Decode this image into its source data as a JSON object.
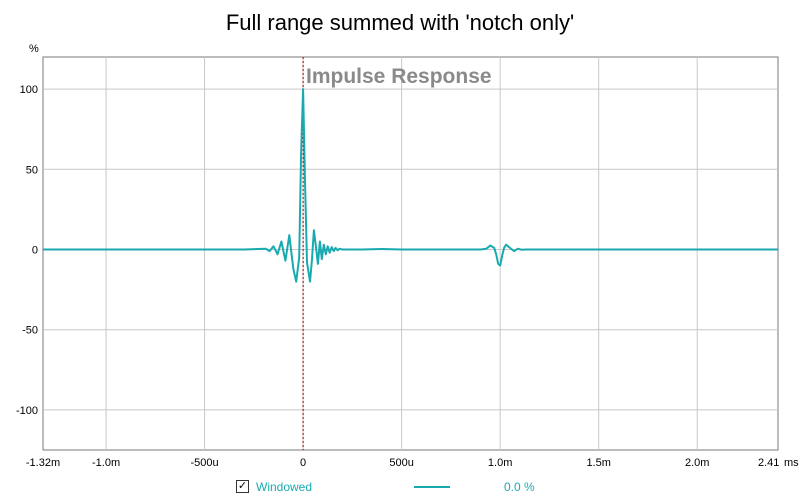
{
  "chart_data": {
    "type": "line",
    "title": "Full range summed with 'notch only'",
    "inner_label": "Impulse Response",
    "ylabel": "%",
    "xlabel": "",
    "xunit_label": "ms",
    "xlim": [
      -1.32,
      2.41
    ],
    "ylim": [
      -125,
      120
    ],
    "x_ticks": [
      {
        "v": -1.32,
        "label": "-1.32m"
      },
      {
        "v": -1.0,
        "label": "-1.0m"
      },
      {
        "v": -0.5,
        "label": "-500u"
      },
      {
        "v": 0,
        "label": "0"
      },
      {
        "v": 0.5,
        "label": "500u"
      },
      {
        "v": 1.0,
        "label": "1.0m"
      },
      {
        "v": 1.5,
        "label": "1.5m"
      },
      {
        "v": 2.0,
        "label": "2.0m"
      },
      {
        "v": 2.41,
        "label": "2.41"
      }
    ],
    "y_ticks": [
      {
        "v": 100,
        "label": "100"
      },
      {
        "v": 50,
        "label": "50"
      },
      {
        "v": 0,
        "label": "0"
      },
      {
        "v": -50,
        "label": "-50"
      },
      {
        "v": -100,
        "label": "-100"
      }
    ],
    "grid": true,
    "marker_x": 0,
    "series": [
      {
        "name": "Windowed",
        "color": "#19aab0",
        "x": [
          -1.32,
          -0.3,
          -0.19,
          -0.17,
          -0.15,
          -0.13,
          -0.11,
          -0.09,
          -0.07,
          -0.05,
          -0.035,
          -0.02,
          -0.01,
          0,
          0.01,
          0.02,
          0.035,
          0.045,
          0.055,
          0.065,
          0.075,
          0.085,
          0.095,
          0.105,
          0.115,
          0.125,
          0.135,
          0.145,
          0.155,
          0.165,
          0.175,
          0.185,
          0.2,
          0.3,
          0.4,
          0.5,
          0.6,
          0.7,
          0.8,
          0.9,
          0.93,
          0.95,
          0.97,
          0.98,
          0.99,
          1.0,
          1.01,
          1.02,
          1.03,
          1.05,
          1.07,
          1.09,
          1.11,
          1.13,
          1.3,
          1.5,
          1.7,
          1.9,
          2.1,
          2.41
        ],
        "values": [
          0,
          0,
          0.5,
          -1,
          2,
          -3,
          5,
          -7,
          9,
          -12,
          -20,
          -5,
          60,
          100,
          40,
          -8,
          -20,
          -6,
          12,
          2,
          -9,
          5,
          -6,
          3,
          -3,
          2,
          -2,
          1.5,
          -1,
          1,
          -0.5,
          0.4,
          0,
          0,
          0.3,
          0,
          0,
          0,
          0,
          0,
          0.5,
          2.5,
          1,
          -3,
          -9,
          -10,
          -4,
          1,
          3,
          1,
          -1,
          0.5,
          -0.2,
          0,
          0,
          0,
          0,
          0,
          0,
          0
        ]
      }
    ]
  },
  "legend": {
    "checkbox_mark": "✓",
    "label": "Windowed",
    "value": "0.0 %",
    "color": "#19aab0"
  }
}
